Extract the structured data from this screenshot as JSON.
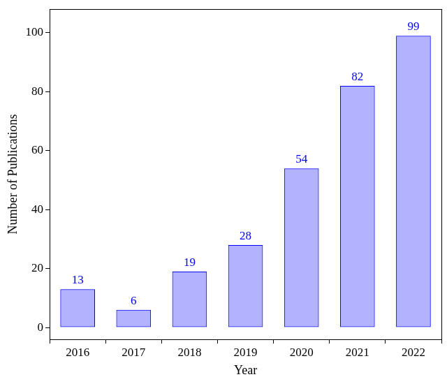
{
  "chart_data": {
    "type": "bar",
    "x_label": "Year",
    "y_label": "Number of Publications",
    "categories": [
      "2016",
      "2017",
      "2018",
      "2019",
      "2020",
      "2021",
      "2022"
    ],
    "values": [
      13,
      6,
      19,
      28,
      54,
      82,
      99
    ],
    "color": "#0000ff",
    "ylim": [
      -4,
      108
    ],
    "yticks": [
      0,
      20,
      40,
      60,
      80,
      100
    ],
    "grid": false,
    "data_labels": true
  }
}
